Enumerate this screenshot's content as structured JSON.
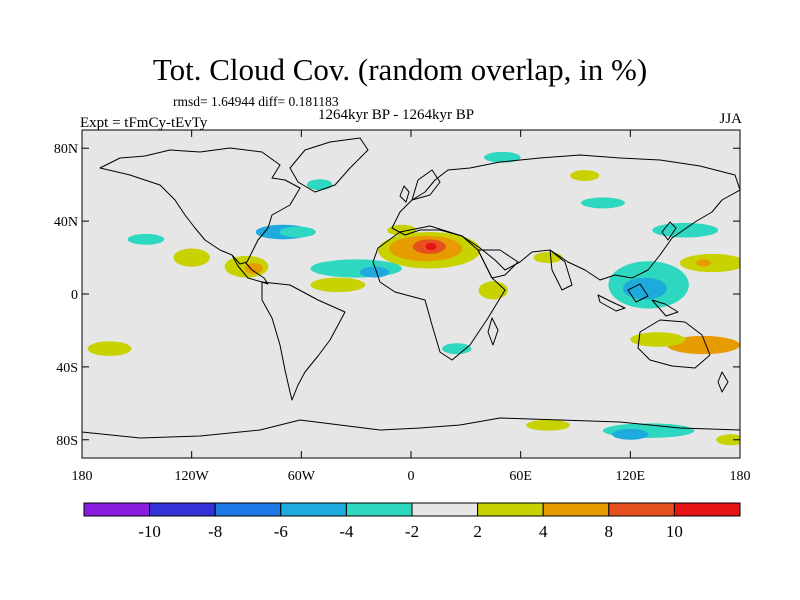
{
  "chart_data": {
    "type": "map-contour",
    "title": "Tot. Cloud Cov. (random overlap, in %)",
    "stats": "rmsd= 1.64944  diff= 0.181183",
    "period": "1264kyr BP - 1264kyr BP",
    "experiment": "Expt = tFmCy-tEvTy",
    "season": "JJA",
    "x_axis": {
      "range": [
        -180,
        180
      ],
      "tick_values": [
        -180,
        -120,
        -60,
        0,
        60,
        120,
        180
      ],
      "tick_labels": [
        "180",
        "120W",
        "60W",
        "0",
        "60E",
        "120E",
        "180"
      ]
    },
    "y_axis": {
      "range": [
        -90,
        90
      ],
      "tick_values": [
        80,
        40,
        0,
        -40,
        -80
      ],
      "tick_labels": [
        "80N",
        "40N",
        "0",
        "40S",
        "80S"
      ]
    },
    "colorbar": {
      "bounds": [
        -10,
        -8,
        -6,
        -4,
        -2,
        2,
        4,
        8,
        10
      ],
      "labels": [
        "-10",
        "-8",
        "-6",
        "-4",
        "-2",
        "2",
        "4",
        "8",
        "10"
      ],
      "colors": [
        "#8a1ee0",
        "#3232d8",
        "#1e78e6",
        "#1eaadc",
        "#2ed8c0",
        "#e6e6e6",
        "#c8d200",
        "#e69c00",
        "#e6501e",
        "#e61414"
      ]
    },
    "anomalies": [
      {
        "lon": 10,
        "lat": 24,
        "rx": 28,
        "ry": 10,
        "color": "#c8d200"
      },
      {
        "lon": 8,
        "lat": 25,
        "rx": 20,
        "ry": 7,
        "color": "#e69c00"
      },
      {
        "lon": 10,
        "lat": 26,
        "rx": 9,
        "ry": 4,
        "color": "#e6501e"
      },
      {
        "lon": 11,
        "lat": 26,
        "rx": 3,
        "ry": 2,
        "color": "#e61414"
      },
      {
        "lon": -30,
        "lat": 14,
        "rx": 25,
        "ry": 5,
        "color": "#2ed8c0"
      },
      {
        "lon": -20,
        "lat": 12,
        "rx": 8,
        "ry": 3,
        "color": "#1eaadc"
      },
      {
        "lon": -70,
        "lat": 34,
        "rx": 15,
        "ry": 4,
        "color": "#1eaadc"
      },
      {
        "lon": -62,
        "lat": 34,
        "rx": 10,
        "ry": 3,
        "color": "#2ed8c0"
      },
      {
        "lon": -120,
        "lat": 20,
        "rx": 10,
        "ry": 5,
        "color": "#c8d200"
      },
      {
        "lon": -90,
        "lat": 15,
        "rx": 12,
        "ry": 6,
        "color": "#c8d200"
      },
      {
        "lon": -86,
        "lat": 14,
        "rx": 5,
        "ry": 3,
        "color": "#e69c00"
      },
      {
        "lon": -40,
        "lat": 5,
        "rx": 15,
        "ry": 4,
        "color": "#c8d200"
      },
      {
        "lon": 130,
        "lat": 5,
        "rx": 22,
        "ry": 13,
        "color": "#2ed8c0"
      },
      {
        "lon": 128,
        "lat": 3,
        "rx": 12,
        "ry": 6,
        "color": "#1eaadc"
      },
      {
        "lon": 165,
        "lat": 17,
        "rx": 18,
        "ry": 5,
        "color": "#c8d200"
      },
      {
        "lon": 160,
        "lat": 17,
        "rx": 4,
        "ry": 2,
        "color": "#e69c00"
      },
      {
        "lon": 150,
        "lat": 35,
        "rx": 18,
        "ry": 4,
        "color": "#2ed8c0"
      },
      {
        "lon": 160,
        "lat": -28,
        "rx": 20,
        "ry": 5,
        "color": "#e69c00"
      },
      {
        "lon": 135,
        "lat": -25,
        "rx": 15,
        "ry": 4,
        "color": "#c8d200"
      },
      {
        "lon": 130,
        "lat": -75,
        "rx": 25,
        "ry": 4,
        "color": "#2ed8c0"
      },
      {
        "lon": 120,
        "lat": -77,
        "rx": 10,
        "ry": 3,
        "color": "#1eaadc"
      },
      {
        "lon": 75,
        "lat": -72,
        "rx": 12,
        "ry": 3,
        "color": "#c8d200"
      },
      {
        "lon": 175,
        "lat": -80,
        "rx": 8,
        "ry": 3,
        "color": "#c8d200"
      },
      {
        "lon": -165,
        "lat": -30,
        "rx": 12,
        "ry": 4,
        "color": "#c8d200"
      },
      {
        "lon": 25,
        "lat": -30,
        "rx": 8,
        "ry": 3,
        "color": "#2ed8c0"
      },
      {
        "lon": 50,
        "lat": 75,
        "rx": 10,
        "ry": 3,
        "color": "#2ed8c0"
      },
      {
        "lon": 95,
        "lat": 65,
        "rx": 8,
        "ry": 3,
        "color": "#c8d200"
      },
      {
        "lon": 105,
        "lat": 50,
        "rx": 12,
        "ry": 3,
        "color": "#2ed8c0"
      },
      {
        "lon": -145,
        "lat": 30,
        "rx": 10,
        "ry": 3,
        "color": "#2ed8c0"
      },
      {
        "lon": -50,
        "lat": 60,
        "rx": 7,
        "ry": 3,
        "color": "#2ed8c0"
      },
      {
        "lon": 75,
        "lat": 20,
        "rx": 8,
        "ry": 3,
        "color": "#c8d200"
      },
      {
        "lon": -5,
        "lat": 35,
        "rx": 8,
        "ry": 3,
        "color": "#c8d200"
      },
      {
        "lon": 45,
        "lat": 2,
        "rx": 8,
        "ry": 5,
        "color": "#c8d200"
      }
    ]
  }
}
